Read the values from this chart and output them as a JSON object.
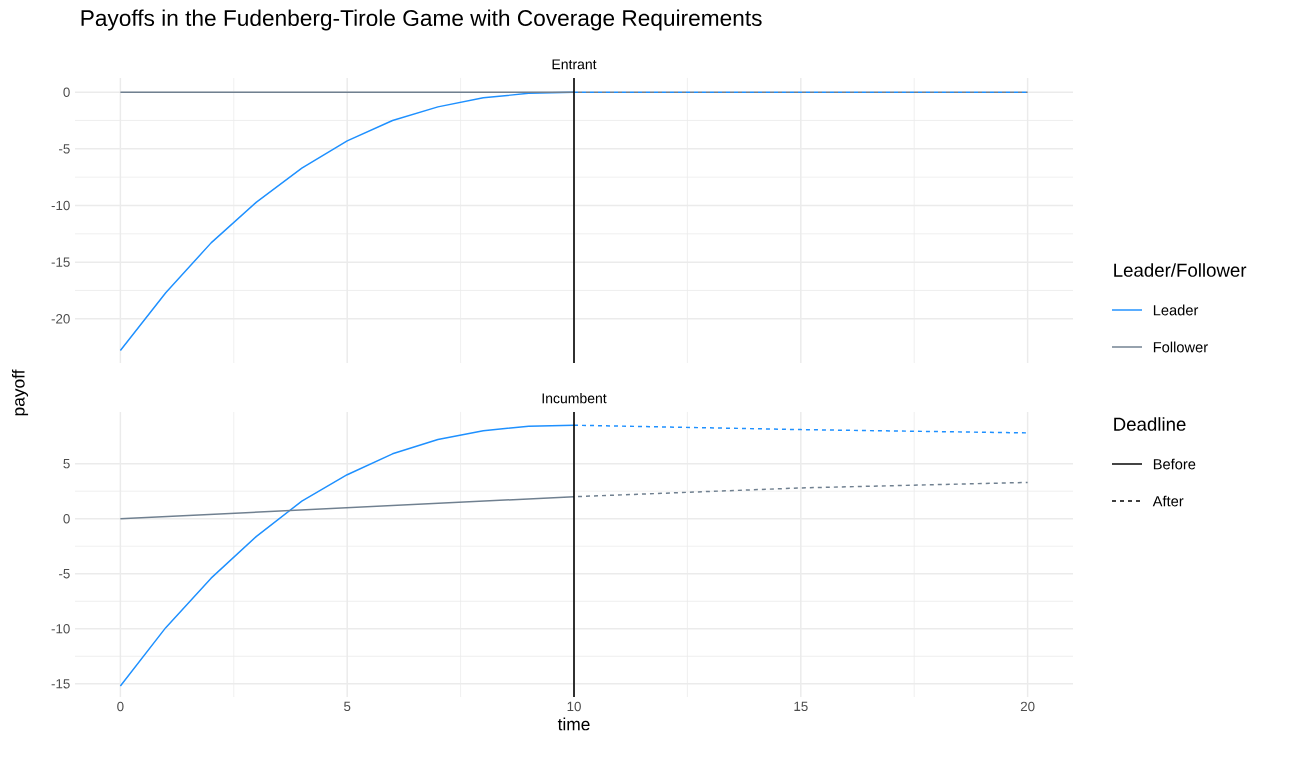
{
  "chart_data": [
    {
      "type": "line",
      "title": "Payoffs in the Fudenberg-Tirole Game with Coverage Requirements",
      "subtitle": "Entrant",
      "ylabel": "payoff",
      "legend_title": "Leader/Follower",
      "legend": "right",
      "grid": true,
      "tick_labels": "y",
      "xlim": [
        -1.0,
        21.0
      ],
      "xticks": [
        0,
        5,
        10,
        15,
        20
      ],
      "ylim": [
        -23.9,
        1.25
      ],
      "yticks": [
        -20,
        -15,
        -10,
        -5,
        0
      ],
      "ref_lines": [
        {
          "axis": "x",
          "value": 10,
          "color": "#000000"
        }
      ],
      "series": [
        {
          "name": "Leader",
          "color": "#1e90ff",
          "line_style": "solid",
          "x": [
            0,
            1,
            2,
            3,
            4,
            5,
            6,
            7,
            8,
            9,
            10
          ],
          "values": [
            -22.8,
            -17.7,
            -13.3,
            -9.7,
            -6.7,
            -4.3,
            -2.5,
            -1.3,
            -0.5,
            -0.1,
            0
          ]
        },
        {
          "color": "#1e90ff",
          "line_style": "dashed",
          "x": [
            10,
            20
          ],
          "values": [
            0,
            0
          ]
        },
        {
          "name": "Follower",
          "color": "#708090",
          "line_style": "solid",
          "x": [
            0,
            10
          ],
          "values": [
            0,
            0
          ]
        },
        {
          "color": "#708090",
          "line_style": "dashed",
          "x": [
            10,
            20
          ],
          "values": [
            0,
            0
          ]
        }
      ]
    },
    {
      "type": "line",
      "subtitle": "Incumbent",
      "xlabel": "time",
      "legend_title": "Deadline",
      "legend": "right",
      "grid": true,
      "annotations": [
        "Before",
        "After"
      ],
      "xlim": [
        -1.0,
        21.0
      ],
      "xticks": [
        0,
        5,
        10,
        15,
        20
      ],
      "ylim": [
        -16.2,
        9.7
      ],
      "yticks": [
        -15,
        -10,
        -5,
        0,
        5
      ],
      "ref_lines": [
        {
          "axis": "x",
          "value": 10,
          "color": "#000000"
        }
      ],
      "series": [
        {
          "color": "#1e90ff",
          "line_style": "solid",
          "x": [
            0,
            1,
            2,
            3,
            4,
            5,
            6,
            7,
            8,
            9,
            10
          ],
          "values": [
            -15.2,
            -9.9,
            -5.4,
            -1.6,
            1.6,
            4.0,
            5.9,
            7.2,
            8.0,
            8.4,
            8.5
          ]
        },
        {
          "color": "#1e90ff",
          "line_style": "dashed",
          "x": [
            10,
            15,
            20
          ],
          "values": [
            8.5,
            8.1,
            7.8
          ]
        },
        {
          "color": "#708090",
          "line_style": "solid",
          "x": [
            0,
            10
          ],
          "values": [
            0,
            2.0
          ]
        },
        {
          "color": "#708090",
          "line_style": "dashed",
          "x": [
            10,
            15,
            20
          ],
          "values": [
            2.0,
            2.8,
            3.3
          ]
        }
      ]
    }
  ]
}
